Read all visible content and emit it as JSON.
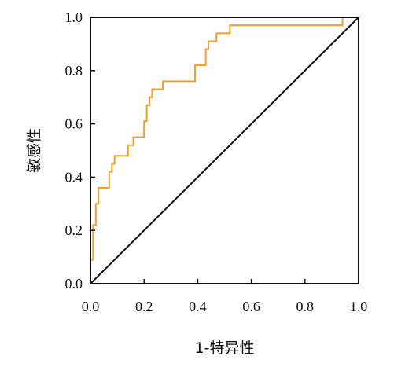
{
  "chart_data": {
    "type": "line",
    "xlabel": "1-特异性",
    "ylabel": "敏感性",
    "xlim": [
      0,
      1
    ],
    "ylim": [
      0,
      1
    ],
    "x_ticks": [
      "0.0",
      "0.2",
      "0.4",
      "0.6",
      "0.8",
      "1.0"
    ],
    "y_ticks": [
      "0.0",
      "0.2",
      "0.4",
      "0.6",
      "0.8",
      "1.0"
    ],
    "grid": false,
    "legend": "none",
    "series": [
      {
        "color": "#f0a030",
        "x": [
          0,
          0,
          0.01,
          0.01,
          0.02,
          0.02,
          0.03,
          0.03,
          0.07,
          0.07,
          0.08,
          0.08,
          0.09,
          0.09,
          0.1,
          0.1,
          0.14,
          0.14,
          0.16,
          0.16,
          0.2,
          0.2,
          0.21,
          0.21,
          0.22,
          0.22,
          0.23,
          0.23,
          0.24,
          0.24,
          0.27,
          0.27,
          0.39,
          0.39,
          0.43,
          0.43,
          0.44,
          0.44,
          0.47,
          0.47,
          0.52,
          0.52,
          0.58,
          0.58,
          0.94,
          0.94,
          1
        ],
        "y": [
          0,
          0.09,
          0.09,
          0.22,
          0.22,
          0.3,
          0.3,
          0.36,
          0.36,
          0.42,
          0.42,
          0.45,
          0.45,
          0.48,
          0.48,
          0.48,
          0.48,
          0.52,
          0.52,
          0.55,
          0.55,
          0.61,
          0.61,
          0.67,
          0.67,
          0.7,
          0.7,
          0.73,
          0.73,
          0.73,
          0.73,
          0.76,
          0.76,
          0.82,
          0.82,
          0.88,
          0.88,
          0.91,
          0.91,
          0.94,
          0.94,
          0.97,
          0.97,
          0.97,
          0.97,
          1.0,
          1.0
        ]
      },
      {
        "color": "#111111",
        "x": [
          0,
          1
        ],
        "y": [
          0,
          1
        ]
      }
    ]
  }
}
